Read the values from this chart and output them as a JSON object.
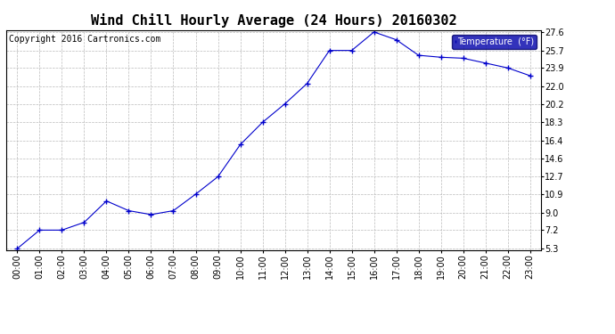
{
  "title": "Wind Chill Hourly Average (24 Hours) 20160302",
  "copyright": "Copyright 2016 Cartronics.com",
  "legend_label": "Temperature  (°F)",
  "hours": [
    "00:00",
    "01:00",
    "02:00",
    "03:00",
    "04:00",
    "05:00",
    "06:00",
    "07:00",
    "08:00",
    "09:00",
    "10:00",
    "11:00",
    "12:00",
    "13:00",
    "14:00",
    "15:00",
    "16:00",
    "17:00",
    "18:00",
    "19:00",
    "20:00",
    "21:00",
    "22:00",
    "23:00"
  ],
  "values": [
    5.3,
    7.2,
    7.2,
    8.0,
    10.2,
    9.2,
    8.8,
    9.2,
    10.9,
    12.7,
    16.0,
    18.3,
    20.2,
    22.3,
    25.7,
    25.7,
    27.6,
    26.8,
    25.2,
    25.0,
    24.9,
    24.4,
    23.9,
    23.1
  ],
  "yticks": [
    5.3,
    7.2,
    9.0,
    10.9,
    12.7,
    14.6,
    16.4,
    18.3,
    20.2,
    22.0,
    23.9,
    25.7,
    27.6
  ],
  "line_color": "#0000cc",
  "marker_color": "#0000cc",
  "grid_color": "#bbbbbb",
  "background_color": "#ffffff",
  "title_fontsize": 11,
  "copyright_fontsize": 7,
  "tick_fontsize": 7,
  "legend_bg": "#0000aa",
  "legend_text_color": "#ffffff"
}
